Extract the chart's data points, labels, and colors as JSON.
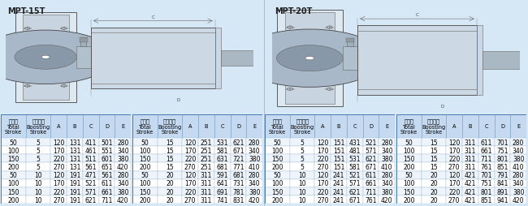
{
  "title_left": "MPT-15T",
  "title_right": "MPT-20T",
  "bg_color": "#d6e8f5",
  "header_bg": "#c5d9f1",
  "font_size": 5.5,
  "header_font_size": 4.8,
  "tables": [
    {
      "label": "MPT-15T Boosting=5,10",
      "rows": [
        [
          50,
          5,
          120,
          131,
          411,
          501,
          280
        ],
        [
          100,
          5,
          170,
          131,
          461,
          551,
          340
        ],
        [
          150,
          5,
          220,
          131,
          511,
          601,
          380
        ],
        [
          200,
          5,
          270,
          131,
          561,
          651,
          420
        ],
        [
          50,
          10,
          120,
          191,
          471,
          561,
          280
        ],
        [
          100,
          10,
          170,
          191,
          521,
          611,
          340
        ],
        [
          150,
          10,
          220,
          191,
          571,
          661,
          380
        ],
        [
          200,
          10,
          270,
          191,
          621,
          711,
          420
        ]
      ]
    },
    {
      "label": "MPT-15T Boosting=15,20",
      "rows": [
        [
          50,
          15,
          120,
          251,
          531,
          621,
          280
        ],
        [
          100,
          15,
          170,
          251,
          581,
          671,
          340
        ],
        [
          150,
          15,
          220,
          251,
          631,
          721,
          380
        ],
        [
          200,
          15,
          270,
          251,
          681,
          771,
          410
        ],
        [
          50,
          20,
          120,
          311,
          591,
          681,
          280
        ],
        [
          100,
          20,
          170,
          311,
          641,
          731,
          340
        ],
        [
          150,
          20,
          220,
          311,
          691,
          781,
          380
        ],
        [
          200,
          20,
          270,
          311,
          741,
          831,
          420
        ]
      ]
    },
    {
      "label": "MPT-20T Boosting=5,10",
      "rows": [
        [
          50,
          5,
          120,
          151,
          431,
          521,
          280
        ],
        [
          100,
          5,
          170,
          151,
          481,
          571,
          340
        ],
        [
          150,
          5,
          220,
          151,
          531,
          621,
          380
        ],
        [
          200,
          5,
          270,
          151,
          581,
          671,
          410
        ],
        [
          50,
          10,
          120,
          241,
          521,
          611,
          280
        ],
        [
          100,
          10,
          170,
          241,
          571,
          661,
          340
        ],
        [
          150,
          10,
          220,
          241,
          621,
          711,
          380
        ],
        [
          200,
          10,
          270,
          241,
          671,
          761,
          420
        ]
      ]
    },
    {
      "label": "MPT-20T Boosting=15,20",
      "rows": [
        [
          50,
          15,
          120,
          311,
          611,
          701,
          280
        ],
        [
          100,
          15,
          170,
          311,
          661,
          751,
          340
        ],
        [
          150,
          15,
          220,
          311,
          711,
          801,
          380
        ],
        [
          200,
          15,
          270,
          311,
          761,
          851,
          410
        ],
        [
          50,
          20,
          120,
          421,
          701,
          791,
          280
        ],
        [
          100,
          20,
          170,
          421,
          751,
          841,
          340
        ],
        [
          150,
          20,
          220,
          421,
          801,
          891,
          380
        ],
        [
          200,
          20,
          270,
          421,
          851,
          941,
          420
        ]
      ]
    }
  ]
}
